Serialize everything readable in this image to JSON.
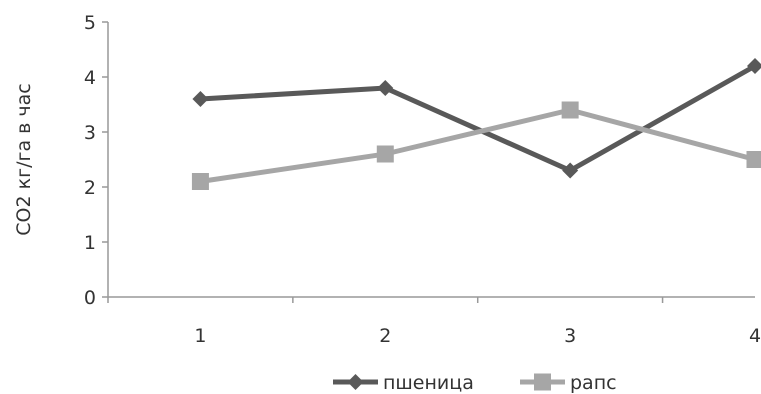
{
  "chart_data": {
    "type": "line",
    "x": [
      1,
      2,
      3,
      4
    ],
    "ylabel": "CO2 кг/га в час",
    "xlabel": "",
    "ylim": [
      0,
      5
    ],
    "yticks": [
      0,
      1,
      2,
      3,
      4,
      5
    ],
    "xticks": [
      "1",
      "2",
      "3",
      "4"
    ],
    "grid": false,
    "legend": "bottom",
    "series": [
      {
        "name": "пшеница",
        "values": [
          3.6,
          3.8,
          2.3,
          4.2
        ],
        "color": "#595959",
        "marker": "diamond"
      },
      {
        "name": "рапс",
        "values": [
          2.1,
          2.6,
          3.4,
          2.5
        ],
        "color": "#a6a6a6",
        "marker": "square"
      }
    ]
  }
}
